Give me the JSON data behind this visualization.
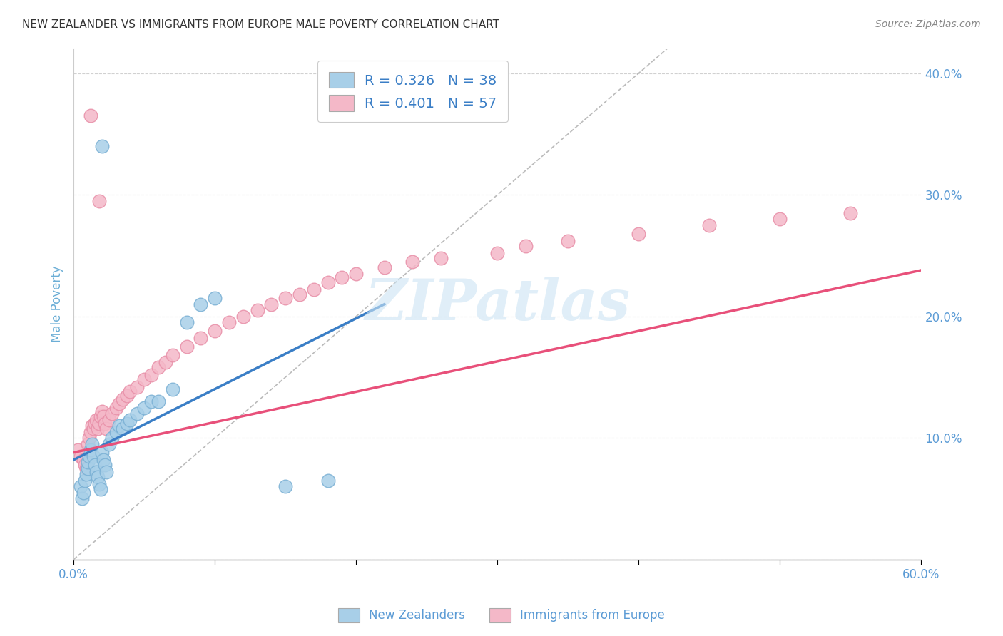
{
  "title": "NEW ZEALANDER VS IMMIGRANTS FROM EUROPE MALE POVERTY CORRELATION CHART",
  "source": "Source: ZipAtlas.com",
  "ylabel": "Male Poverty",
  "xlim": [
    0.0,
    0.6
  ],
  "ylim": [
    0.0,
    0.42
  ],
  "xticks": [
    0.0,
    0.1,
    0.2,
    0.3,
    0.4,
    0.5,
    0.6
  ],
  "yticks": [
    0.0,
    0.1,
    0.2,
    0.3,
    0.4
  ],
  "xticklabels_shown": [
    "0.0%",
    "",
    "",
    "",
    "",
    "",
    "60.0%"
  ],
  "yticklabels_shown": [
    "",
    "10.0%",
    "20.0%",
    "30.0%",
    "40.0%"
  ],
  "blue_color": "#a8cfe8",
  "pink_color": "#f4b8c8",
  "blue_scatter_edge": "#7ab0d4",
  "pink_scatter_edge": "#e88fa8",
  "blue_line_color": "#3a7ec6",
  "pink_line_color": "#e8507a",
  "blue_R": 0.326,
  "blue_N": 38,
  "pink_R": 0.401,
  "pink_N": 57,
  "legend_label_blue": "New Zealanders",
  "legend_label_pink": "Immigrants from Europe",
  "legend_text_color": "#3a7ec6",
  "watermark": "ZIPatlas",
  "blue_scatter_x": [
    0.005,
    0.006,
    0.007,
    0.008,
    0.009,
    0.01,
    0.01,
    0.011,
    0.012,
    0.013,
    0.014,
    0.015,
    0.016,
    0.017,
    0.018,
    0.019,
    0.02,
    0.021,
    0.022,
    0.023,
    0.025,
    0.027,
    0.03,
    0.032,
    0.035,
    0.038,
    0.04,
    0.045,
    0.05,
    0.055,
    0.06,
    0.07,
    0.08,
    0.09,
    0.1,
    0.15,
    0.18,
    0.02
  ],
  "blue_scatter_y": [
    0.06,
    0.05,
    0.055,
    0.065,
    0.07,
    0.075,
    0.08,
    0.085,
    0.09,
    0.095,
    0.085,
    0.078,
    0.072,
    0.068,
    0.062,
    0.058,
    0.088,
    0.082,
    0.078,
    0.072,
    0.095,
    0.1,
    0.105,
    0.11,
    0.108,
    0.112,
    0.115,
    0.12,
    0.125,
    0.13,
    0.13,
    0.14,
    0.195,
    0.21,
    0.215,
    0.06,
    0.065,
    0.34
  ],
  "pink_scatter_x": [
    0.003,
    0.005,
    0.007,
    0.008,
    0.009,
    0.01,
    0.011,
    0.012,
    0.013,
    0.014,
    0.015,
    0.016,
    0.017,
    0.018,
    0.019,
    0.02,
    0.021,
    0.022,
    0.023,
    0.025,
    0.027,
    0.03,
    0.032,
    0.035,
    0.038,
    0.04,
    0.045,
    0.05,
    0.055,
    0.06,
    0.065,
    0.07,
    0.08,
    0.09,
    0.1,
    0.11,
    0.12,
    0.13,
    0.14,
    0.15,
    0.16,
    0.17,
    0.18,
    0.19,
    0.2,
    0.22,
    0.24,
    0.26,
    0.3,
    0.32,
    0.35,
    0.4,
    0.45,
    0.5,
    0.55,
    0.012,
    0.018
  ],
  "pink_scatter_y": [
    0.09,
    0.085,
    0.082,
    0.078,
    0.075,
    0.095,
    0.1,
    0.105,
    0.11,
    0.108,
    0.112,
    0.115,
    0.108,
    0.112,
    0.118,
    0.122,
    0.118,
    0.112,
    0.108,
    0.115,
    0.12,
    0.125,
    0.128,
    0.132,
    0.135,
    0.138,
    0.142,
    0.148,
    0.152,
    0.158,
    0.162,
    0.168,
    0.175,
    0.182,
    0.188,
    0.195,
    0.2,
    0.205,
    0.21,
    0.215,
    0.218,
    0.222,
    0.228,
    0.232,
    0.235,
    0.24,
    0.245,
    0.248,
    0.252,
    0.258,
    0.262,
    0.268,
    0.275,
    0.28,
    0.285,
    0.365,
    0.295
  ],
  "blue_line_x": [
    0.0,
    0.22
  ],
  "blue_line_y": [
    0.082,
    0.21
  ],
  "pink_line_x": [
    0.0,
    0.6
  ],
  "pink_line_y": [
    0.088,
    0.238
  ],
  "diagonal_line_x": [
    0.0,
    0.42
  ],
  "diagonal_line_y": [
    0.0,
    0.42
  ],
  "background_color": "#ffffff",
  "grid_color": "#cccccc",
  "title_color": "#333333",
  "axis_label_color": "#6baed6",
  "tick_label_color": "#5b9bd5"
}
